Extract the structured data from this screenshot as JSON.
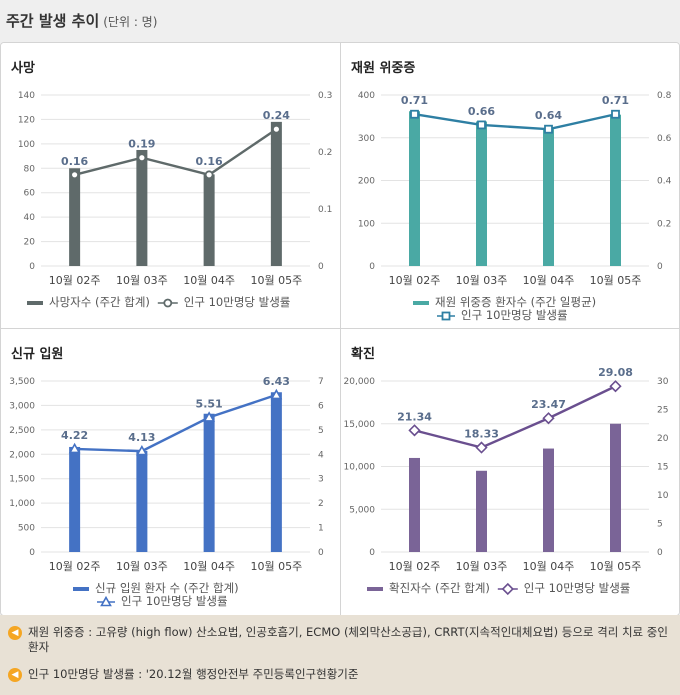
{
  "header": {
    "title": "주간 발생 추이",
    "unit": "(단위 : 명)"
  },
  "chart_data": [
    {
      "id": "deaths",
      "type": "bar",
      "title": "사망",
      "categories": [
        "10월 02주",
        "10월 03주",
        "10월 04주",
        "10월 05주"
      ],
      "series": [
        {
          "name": "사망자수 (주간 합계)",
          "kind": "bar",
          "axis": "left",
          "values": [
            80,
            95,
            75,
            118
          ],
          "color": "#5f6a6a"
        },
        {
          "name": "인구 10만명당 발생률",
          "kind": "line",
          "axis": "right",
          "values": [
            0.16,
            0.19,
            0.16,
            0.24
          ],
          "labels": [
            "0.16",
            "0.19",
            "0.16",
            "0.24"
          ],
          "marker": "circle",
          "color": "#5f6a6a"
        }
      ],
      "ylim_left": [
        0,
        140
      ],
      "yticks_left": [
        "0",
        "20",
        "40",
        "60",
        "80",
        "100",
        "120",
        "140"
      ],
      "ylim_right": [
        0,
        0.3
      ],
      "yticks_right": [
        "0",
        "0.1",
        "0.2",
        "0.3"
      ],
      "legend_layout": "row"
    },
    {
      "id": "severe",
      "type": "bar",
      "title": "재원 위중증",
      "categories": [
        "10월 02주",
        "10월 03주",
        "10월 04주",
        "10월 05주"
      ],
      "series": [
        {
          "name": "재원 위중증 환자수 (주간 일평균)",
          "kind": "bar",
          "axis": "left",
          "values": [
            362,
            338,
            320,
            354
          ],
          "color": "#4aa9a4"
        },
        {
          "name": "인구 10만명당 발생률",
          "kind": "line",
          "axis": "right",
          "values": [
            0.71,
            0.66,
            0.64,
            0.71
          ],
          "labels": [
            "0.71",
            "0.66",
            "0.64",
            "0.71"
          ],
          "marker": "square",
          "color": "#2e7fa3"
        }
      ],
      "ylim_left": [
        0,
        400
      ],
      "yticks_left": [
        "0",
        "100",
        "200",
        "300",
        "400"
      ],
      "ylim_right": [
        0,
        0.8
      ],
      "yticks_right": [
        "0",
        "0.2",
        "0.4",
        "0.6",
        "0.8"
      ],
      "legend_layout": "stack"
    },
    {
      "id": "admissions",
      "type": "bar",
      "title": "신규 입원",
      "categories": [
        "10월 02주",
        "10월 03주",
        "10월 04주",
        "10월 05주"
      ],
      "series": [
        {
          "name": "신규 입원 환자 수 (주간 합계)",
          "kind": "bar",
          "axis": "left",
          "values": [
            2150,
            2070,
            2830,
            3270
          ],
          "color": "#4472c4"
        },
        {
          "name": "인구 10만명당 발생률",
          "kind": "line",
          "axis": "right",
          "values": [
            4.22,
            4.13,
            5.51,
            6.43
          ],
          "labels": [
            "4.22",
            "4.13",
            "5.51",
            "6.43"
          ],
          "marker": "triangle",
          "color": "#4472c4"
        }
      ],
      "ylim_left": [
        0,
        3500
      ],
      "yticks_left": [
        "0",
        "500",
        "1,000",
        "1,500",
        "2,000",
        "2,500",
        "3,000",
        "3,500"
      ],
      "ylim_right": [
        0,
        7
      ],
      "yticks_right": [
        "0",
        "1",
        "2",
        "3",
        "4",
        "5",
        "6",
        "7"
      ],
      "legend_layout": "stack"
    },
    {
      "id": "confirmed",
      "type": "bar",
      "title": "확진",
      "categories": [
        "10월 02주",
        "10월 03주",
        "10월 04주",
        "10월 05주"
      ],
      "series": [
        {
          "name": "확진자수 (주간 합계)",
          "kind": "bar",
          "axis": "left",
          "values": [
            11000,
            9500,
            12100,
            15000
          ],
          "color": "#7a6497"
        },
        {
          "name": "인구 10만명당 발생률",
          "kind": "line",
          "axis": "right",
          "values": [
            21.34,
            18.33,
            23.47,
            29.08
          ],
          "labels": [
            "21.34",
            "18.33",
            "23.47",
            "29.08"
          ],
          "marker": "diamond",
          "color": "#6a4f8f"
        }
      ],
      "ylim_left": [
        0,
        20000
      ],
      "yticks_left": [
        "0",
        "5,000",
        "10,000",
        "15,000",
        "20,000"
      ],
      "ylim_right": [
        0,
        30
      ],
      "yticks_right": [
        "0",
        "5",
        "10",
        "15",
        "20",
        "25",
        "30"
      ],
      "legend_layout": "row"
    }
  ],
  "notes": [
    {
      "text": "재원 위중증 : 고유량 (high flow) 산소요법, 인공호흡기, ECMO (체외막산소공급), CRRT(지속적인대체요법) 등으로 격리 치료 중인 환자"
    },
    {
      "text": "인구 10만명당 발생률 : '20.12월 행정안전부 주민등록인구현황기준"
    }
  ],
  "colors": {
    "note_bg": "#e8e1d5",
    "note_icon": "#f5a623",
    "label": "#5a6e8c"
  }
}
